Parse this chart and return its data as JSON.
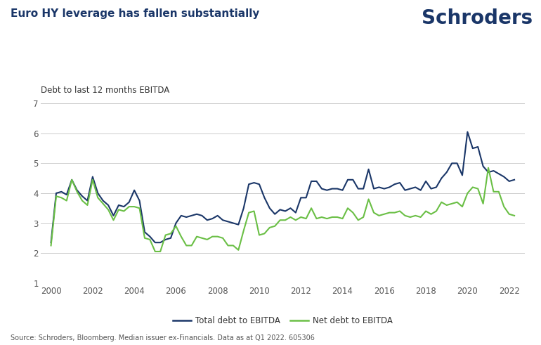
{
  "title": "Euro HY leverage has fallen substantially",
  "subtitle": "Debt to last 12 months EBITDA",
  "source": "Source: Schroders, Bloomberg. Median issuer ex-Financials. Data as at Q1 2022. 605306",
  "schroders_text": "Schroders",
  "total_debt_color": "#1a3668",
  "net_debt_color": "#6abf45",
  "background_color": "#ffffff",
  "title_color": "#1a3668",
  "schroders_color": "#1a3668",
  "ylim": [
    1,
    7
  ],
  "yticks": [
    1,
    2,
    3,
    4,
    5,
    6,
    7
  ],
  "xlim": [
    1999.5,
    2022.75
  ],
  "xticks": [
    2000,
    2002,
    2004,
    2006,
    2008,
    2010,
    2012,
    2014,
    2016,
    2018,
    2020,
    2022
  ],
  "legend_label_total": "Total debt to EBITDA",
  "legend_label_net": "Net debt to EBITDA",
  "total_debt_x": [
    2000.0,
    2000.25,
    2000.5,
    2000.75,
    2001.0,
    2001.25,
    2001.5,
    2001.75,
    2002.0,
    2002.25,
    2002.5,
    2002.75,
    2003.0,
    2003.25,
    2003.5,
    2003.75,
    2004.0,
    2004.25,
    2004.5,
    2004.75,
    2005.0,
    2005.25,
    2005.5,
    2005.75,
    2006.0,
    2006.25,
    2006.5,
    2006.75,
    2007.0,
    2007.25,
    2007.5,
    2007.75,
    2008.0,
    2008.25,
    2008.5,
    2008.75,
    2009.0,
    2009.25,
    2009.5,
    2009.75,
    2010.0,
    2010.25,
    2010.5,
    2010.75,
    2011.0,
    2011.25,
    2011.5,
    2011.75,
    2012.0,
    2012.25,
    2012.5,
    2012.75,
    2013.0,
    2013.25,
    2013.5,
    2013.75,
    2014.0,
    2014.25,
    2014.5,
    2014.75,
    2015.0,
    2015.25,
    2015.5,
    2015.75,
    2016.0,
    2016.25,
    2016.5,
    2016.75,
    2017.0,
    2017.25,
    2017.5,
    2017.75,
    2018.0,
    2018.25,
    2018.5,
    2018.75,
    2019.0,
    2019.25,
    2019.5,
    2019.75,
    2020.0,
    2020.25,
    2020.5,
    2020.75,
    2021.0,
    2021.25,
    2021.5,
    2021.75,
    2022.0,
    2022.25
  ],
  "total_debt_y": [
    2.35,
    4.0,
    4.05,
    3.95,
    4.45,
    4.1,
    3.9,
    3.75,
    4.55,
    4.0,
    3.75,
    3.6,
    3.25,
    3.6,
    3.55,
    3.7,
    4.1,
    3.75,
    2.7,
    2.55,
    2.35,
    2.35,
    2.45,
    2.5,
    3.0,
    3.25,
    3.2,
    3.25,
    3.3,
    3.25,
    3.1,
    3.15,
    3.25,
    3.1,
    3.05,
    3.0,
    2.95,
    3.5,
    4.3,
    4.35,
    4.3,
    3.85,
    3.5,
    3.3,
    3.45,
    3.4,
    3.5,
    3.35,
    3.85,
    3.85,
    4.4,
    4.4,
    4.15,
    4.1,
    4.15,
    4.15,
    4.1,
    4.45,
    4.45,
    4.15,
    4.15,
    4.8,
    4.15,
    4.2,
    4.15,
    4.2,
    4.3,
    4.35,
    4.1,
    4.15,
    4.2,
    4.1,
    4.4,
    4.15,
    4.2,
    4.5,
    4.7,
    5.0,
    5.0,
    4.6,
    6.05,
    5.5,
    5.55,
    4.9,
    4.7,
    4.75,
    4.65,
    4.55,
    4.4,
    4.45
  ],
  "net_debt_x": [
    2000.0,
    2000.25,
    2000.5,
    2000.75,
    2001.0,
    2001.25,
    2001.5,
    2001.75,
    2002.0,
    2002.25,
    2002.5,
    2002.75,
    2003.0,
    2003.25,
    2003.5,
    2003.75,
    2004.0,
    2004.25,
    2004.5,
    2004.75,
    2005.0,
    2005.25,
    2005.5,
    2005.75,
    2006.0,
    2006.25,
    2006.5,
    2006.75,
    2007.0,
    2007.25,
    2007.5,
    2007.75,
    2008.0,
    2008.25,
    2008.5,
    2008.75,
    2009.0,
    2009.25,
    2009.5,
    2009.75,
    2010.0,
    2010.25,
    2010.5,
    2010.75,
    2011.0,
    2011.25,
    2011.5,
    2011.75,
    2012.0,
    2012.25,
    2012.5,
    2012.75,
    2013.0,
    2013.25,
    2013.5,
    2013.75,
    2014.0,
    2014.25,
    2014.5,
    2014.75,
    2015.0,
    2015.25,
    2015.5,
    2015.75,
    2016.0,
    2016.25,
    2016.5,
    2016.75,
    2017.0,
    2017.25,
    2017.5,
    2017.75,
    2018.0,
    2018.25,
    2018.5,
    2018.75,
    2019.0,
    2019.25,
    2019.5,
    2019.75,
    2020.0,
    2020.25,
    2020.5,
    2020.75,
    2021.0,
    2021.25,
    2021.5,
    2021.75,
    2022.0,
    2022.25
  ],
  "net_debt_y": [
    2.25,
    3.9,
    3.85,
    3.75,
    4.45,
    4.05,
    3.75,
    3.6,
    4.45,
    3.85,
    3.65,
    3.45,
    3.1,
    3.45,
    3.4,
    3.55,
    3.55,
    3.5,
    2.5,
    2.45,
    2.05,
    2.05,
    2.6,
    2.65,
    2.9,
    2.55,
    2.25,
    2.25,
    2.55,
    2.5,
    2.45,
    2.55,
    2.55,
    2.5,
    2.25,
    2.25,
    2.1,
    2.75,
    3.35,
    3.4,
    2.6,
    2.65,
    2.85,
    2.9,
    3.1,
    3.1,
    3.2,
    3.1,
    3.2,
    3.15,
    3.5,
    3.15,
    3.2,
    3.15,
    3.2,
    3.2,
    3.15,
    3.5,
    3.35,
    3.1,
    3.2,
    3.8,
    3.35,
    3.25,
    3.3,
    3.35,
    3.35,
    3.4,
    3.25,
    3.2,
    3.25,
    3.2,
    3.4,
    3.3,
    3.4,
    3.7,
    3.6,
    3.65,
    3.7,
    3.55,
    4.0,
    4.2,
    4.15,
    3.65,
    4.85,
    4.05,
    4.05,
    3.55,
    3.3,
    3.25
  ]
}
